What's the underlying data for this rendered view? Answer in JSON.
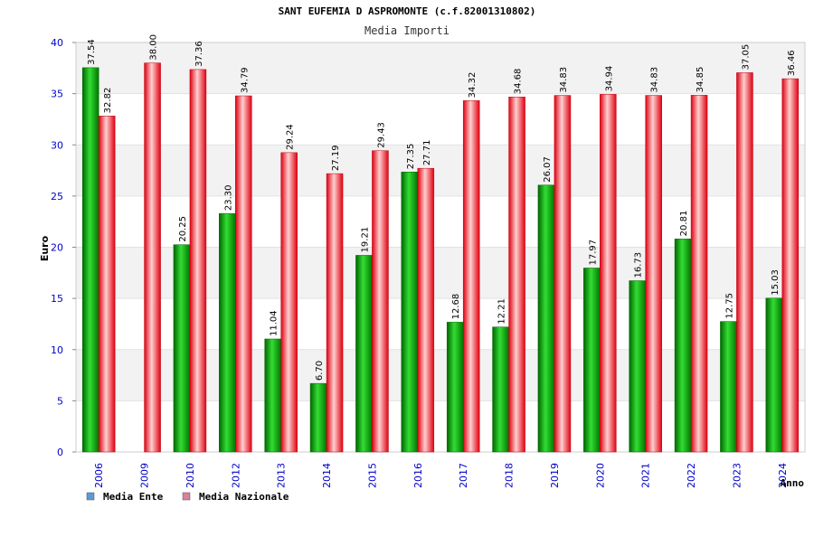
{
  "chart_data": {
    "type": "bar",
    "title": "SANT EUFEMIA D ASPROMONTE (c.f.82001310802)",
    "subtitle": "Media Importi",
    "xlabel": "Anno",
    "ylabel": "Euro",
    "ylim": [
      0,
      40
    ],
    "yticks": [
      0,
      5,
      10,
      15,
      20,
      25,
      30,
      35,
      40
    ],
    "grid": true,
    "legend_position": "bottom-left",
    "categories": [
      "2006",
      "2009",
      "2010",
      "2012",
      "2013",
      "2014",
      "2015",
      "2016",
      "2017",
      "2018",
      "2019",
      "2020",
      "2021",
      "2022",
      "2023",
      "2024"
    ],
    "series": [
      {
        "name": "Media Ente",
        "color": "#00a000",
        "legend_color": "#5b9bd5",
        "values": [
          37.54,
          null,
          20.25,
          23.3,
          11.04,
          6.7,
          19.21,
          27.35,
          12.68,
          12.21,
          26.07,
          17.97,
          16.73,
          20.81,
          12.75,
          15.03
        ],
        "labels": [
          "37.54",
          "",
          "20.25",
          "23.30",
          "11.04",
          "6.70",
          "19.21",
          "27.35",
          "12.68",
          "12.21",
          "26.07",
          "17.97",
          "16.73",
          "20.81",
          "12.75",
          "15.03"
        ]
      },
      {
        "name": "Media Nazionale",
        "color": "#e8000c",
        "legend_color": "#d97fa0",
        "values": [
          32.82,
          38.0,
          37.36,
          34.79,
          29.24,
          27.19,
          29.43,
          27.71,
          34.32,
          34.68,
          34.83,
          34.94,
          34.83,
          34.85,
          37.05,
          36.46
        ],
        "labels": [
          "32.82",
          "38.00",
          "37.36",
          "34.79",
          "29.24",
          "27.19",
          "29.43",
          "27.71",
          "34.32",
          "34.68",
          "34.83",
          "34.94",
          "34.83",
          "34.85",
          "37.05",
          "36.46"
        ]
      }
    ]
  }
}
